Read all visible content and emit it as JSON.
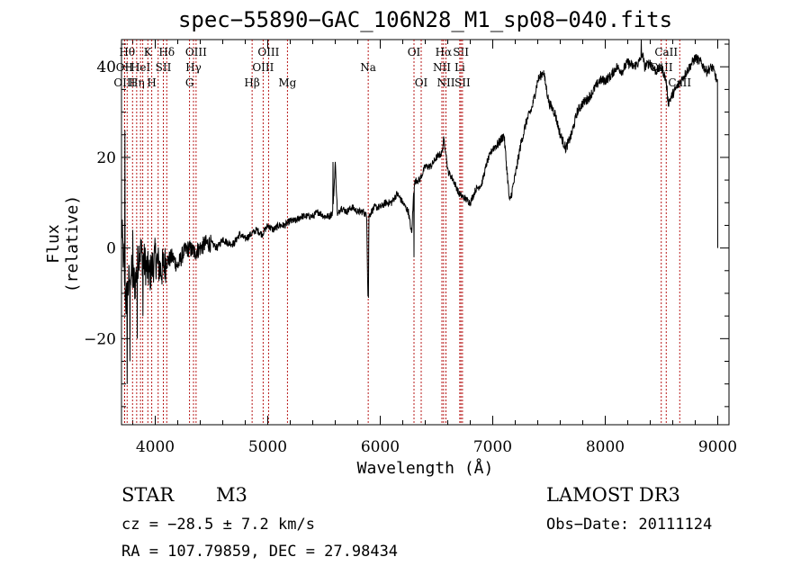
{
  "chart_data": {
    "type": "line",
    "title": "spec−55890−GAC_106N28_M1_sp08−040.fits",
    "xlabel": "Wavelength (Å)",
    "ylabel": "Flux (relative)",
    "xlim": [
      3700,
      9100
    ],
    "ylim": [
      -39,
      46
    ],
    "xticks": [
      4000,
      5000,
      6000,
      7000,
      8000,
      9000
    ],
    "yticks": [
      -20,
      0,
      20,
      40
    ],
    "ytick_labels": [
      "−20",
      "0",
      "20",
      "40"
    ],
    "series": [
      {
        "name": "flux",
        "x": [
          3700,
          3740,
          3780,
          3820,
          3860,
          3900,
          3950,
          4000,
          4050,
          4100,
          4150,
          4200,
          4250,
          4300,
          4350,
          4400,
          4450,
          4500,
          4550,
          4600,
          4650,
          4700,
          4750,
          4800,
          4850,
          4900,
          4950,
          5000,
          5050,
          5100,
          5150,
          5200,
          5250,
          5300,
          5350,
          5400,
          5450,
          5500,
          5550,
          5580,
          5600,
          5620,
          5650,
          5700,
          5750,
          5800,
          5850,
          5880,
          5890,
          5895,
          5900,
          5920,
          5950,
          6000,
          6050,
          6100,
          6150,
          6200,
          6250,
          6280,
          6300,
          6320,
          6350,
          6400,
          6450,
          6500,
          6550,
          6563,
          6580,
          6600,
          6650,
          6700,
          6750,
          6800,
          6850,
          6900,
          6950,
          7000,
          7050,
          7100,
          7150,
          7200,
          7250,
          7300,
          7350,
          7400,
          7450,
          7500,
          7550,
          7600,
          7650,
          7700,
          7750,
          7800,
          7850,
          7900,
          7950,
          8000,
          8050,
          8100,
          8150,
          8200,
          8250,
          8300,
          8330,
          8350,
          8400,
          8450,
          8500,
          8540,
          8560,
          8600,
          8650,
          8700,
          8750,
          8800,
          8850,
          8900,
          8950,
          8980,
          9000
        ],
        "values": [
          5,
          -12,
          -5,
          -8,
          0,
          -3,
          -6,
          -2,
          -5,
          -3,
          -2,
          -4,
          -1,
          0,
          -1,
          0,
          1,
          1,
          0,
          2,
          1,
          1,
          3,
          2,
          3,
          4,
          3,
          5,
          4,
          5,
          5,
          6,
          6,
          7,
          7,
          7,
          8,
          7,
          7,
          8,
          19,
          7,
          9,
          8,
          9,
          8,
          8,
          7,
          -10,
          -5,
          7,
          8,
          9,
          9,
          10,
          10,
          12,
          10,
          8,
          3,
          14,
          15,
          15,
          18,
          18,
          20,
          21,
          24,
          22,
          17,
          15,
          12,
          11,
          10,
          13,
          14,
          19,
          22,
          23,
          25,
          10,
          16,
          23,
          28,
          31,
          37,
          39,
          32,
          30,
          25,
          22,
          25,
          30,
          32,
          33,
          35,
          37,
          37,
          38,
          40,
          39,
          41,
          40,
          41,
          43,
          40,
          41,
          39,
          40,
          37,
          32,
          34,
          36,
          38,
          40,
          42,
          41,
          39,
          40,
          38,
          36
        ],
        "spikes": [
          {
            "x": 3730,
            "y": 26
          },
          {
            "x": 3750,
            "y": -30
          },
          {
            "x": 3775,
            "y": -25
          },
          {
            "x": 3800,
            "y": 4
          },
          {
            "x": 3840,
            "y": -20
          },
          {
            "x": 3890,
            "y": -15
          },
          {
            "x": 5580,
            "y": 19
          },
          {
            "x": 5895,
            "y": -11
          },
          {
            "x": 6300,
            "y": -2
          },
          {
            "x": 8320,
            "y": 46
          },
          {
            "x": 9000,
            "y": 0
          }
        ]
      }
    ],
    "lines": [
      {
        "x": 3750,
        "label": "Hθ",
        "row": 0
      },
      {
        "x": 3727,
        "label": "OII",
        "row": 1
      },
      {
        "x": 3727,
        "label": "OIII",
        "row": 2
      },
      {
        "x": 3798,
        "label": "",
        "row": 3
      },
      {
        "x": 3835,
        "label": "Hη",
        "row": 2
      },
      {
        "x": 3869,
        "label": "HeI",
        "row": 1
      },
      {
        "x": 3889,
        "label": "",
        "row": 3
      },
      {
        "x": 3934,
        "label": "K",
        "row": 0
      },
      {
        "x": 3969,
        "label": "H",
        "row": 2
      },
      {
        "x": 4026,
        "label": "",
        "row": 3
      },
      {
        "x": 4072,
        "label": "SII",
        "row": 1
      },
      {
        "x": 4102,
        "label": "Hδ",
        "row": 0
      },
      {
        "x": 4305,
        "label": "G",
        "row": 2
      },
      {
        "x": 4340,
        "label": "Hγ",
        "row": 1
      },
      {
        "x": 4363,
        "label": "OIII",
        "row": 0
      },
      {
        "x": 4861,
        "label": "Hβ",
        "row": 2
      },
      {
        "x": 4959,
        "label": "OIII",
        "row": 1
      },
      {
        "x": 5007,
        "label": "OIII",
        "row": 0
      },
      {
        "x": 5175,
        "label": "Mg",
        "row": 2
      },
      {
        "x": 5893,
        "label": "Na",
        "row": 1
      },
      {
        "x": 6300,
        "label": "OI",
        "row": 0
      },
      {
        "x": 6364,
        "label": "OI",
        "row": 2
      },
      {
        "x": 6548,
        "label": "NII",
        "row": 1
      },
      {
        "x": 6563,
        "label": "Hα",
        "row": 0
      },
      {
        "x": 6584,
        "label": "NII",
        "row": 2
      },
      {
        "x": 6707,
        "label": "Li",
        "row": 1
      },
      {
        "x": 6717,
        "label": "SII",
        "row": 0
      },
      {
        "x": 6731,
        "label": "SII",
        "row": 2
      },
      {
        "x": 8498,
        "label": "CaII",
        "row": 1
      },
      {
        "x": 8542,
        "label": "CaII",
        "row": 0
      },
      {
        "x": 8662,
        "label": "CaII",
        "row": 2
      }
    ]
  },
  "info": {
    "class": "STAR",
    "subclass": "M3",
    "survey": "LAMOST DR3",
    "cz": "cz = −28.5 ± 7.2 km/s",
    "obs_date": "Obs−Date: 20111124",
    "radec": "RA = 107.79859, DEC =  27.98434"
  }
}
